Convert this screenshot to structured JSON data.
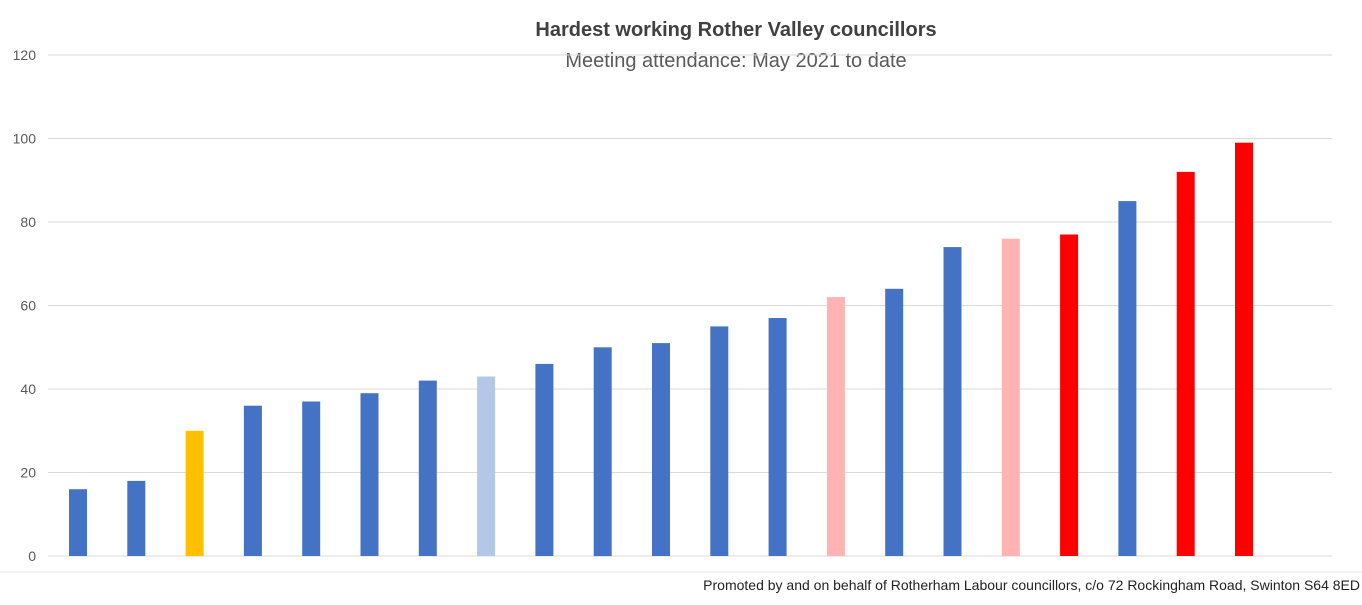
{
  "chart_data": {
    "type": "bar",
    "title": "Hardest working Rother Valley councillors",
    "subtitle": "Meeting attendance: May 2021 to date",
    "xlabel": "",
    "ylabel": "",
    "ylim": [
      0,
      120
    ],
    "y_ticks": [
      "0",
      "20",
      "40",
      "60",
      "80",
      "100",
      "120"
    ],
    "grid": true,
    "values": [
      16,
      18,
      30,
      36,
      37,
      39,
      42,
      43,
      46,
      50,
      51,
      55,
      57,
      62,
      64,
      74,
      76,
      77,
      85,
      92,
      99
    ],
    "bar_colors": [
      "#4472c4",
      "#4472c4",
      "#ffc000",
      "#4472c4",
      "#4472c4",
      "#4472c4",
      "#4472c4",
      "#b4c7e7",
      "#4472c4",
      "#4472c4",
      "#4472c4",
      "#4472c4",
      "#4472c4",
      "#ffb3b3",
      "#4472c4",
      "#4472c4",
      "#ffb3b3",
      "#ff0000",
      "#4472c4",
      "#ff0000",
      "#ff0000"
    ]
  },
  "footer": {
    "text": "Promoted by and on behalf of Rotherham Labour councillors, c/o 72 Rockingham Road, Swinton S64 8ED"
  },
  "colors": {
    "gridline": "#d9d9d9",
    "axis": "#d9d9d9"
  }
}
